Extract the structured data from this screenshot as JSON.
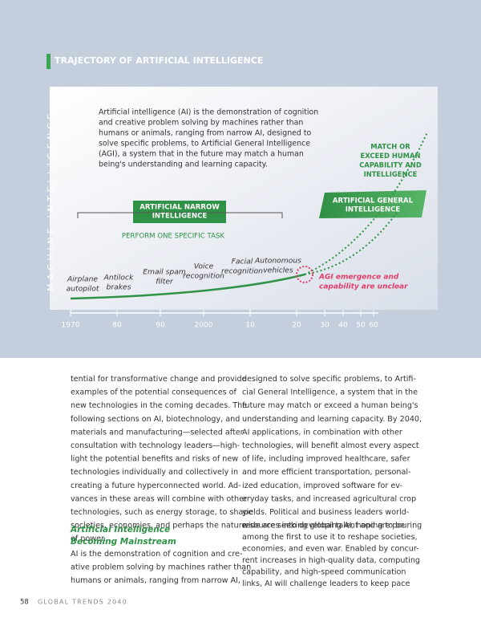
{
  "figure": {
    "title": "TRAJECTORY OF ARTIFICIAL INTELLIGENCE",
    "y_axis_label": "MACHINE INTELLIGENCE",
    "description": [
      "Artificial intelligence (AI) is the demonstration of cognition",
      "and creative problem solving by machines rather than",
      "humans or animals, ranging from narrow AI, designed to",
      "solve specific problems, to Artificial General Intelligence",
      "(AGI), a system that in the future may match a human",
      "being's understanding and learning capacity."
    ],
    "narrow_box": [
      "ARTIFICIAL NARROW",
      "INTELLIGENCE"
    ],
    "narrow_task": "PERFORM ONE SPECIFIC TASK",
    "general_box": [
      "ARTIFICIAL GENERAL",
      "INTELLIGENCE"
    ],
    "match_note": [
      "MATCH OR",
      "EXCEED HUMAN",
      "CAPABILITY AND",
      "INTELLIGENCE"
    ],
    "agi_note": [
      "AGI emergence and",
      "capability are unclear"
    ],
    "milestones": [
      [
        "Airplane",
        "autopilot"
      ],
      [
        "Antilock",
        "brakes"
      ],
      [
        "Email spam",
        "filter"
      ],
      [
        "Voice",
        "recognition"
      ],
      [
        "Facial",
        "recognition"
      ],
      [
        "Autonomous",
        "vehicles"
      ]
    ],
    "timeline": [
      "1970",
      "80",
      "90",
      "2000",
      "10",
      "20",
      "30",
      "40",
      "50",
      "60"
    ]
  },
  "body": {
    "left": [
      "tential for transformative change and provide",
      "examples of the potential consequences of",
      "new technologies in the coming decades. The",
      "following sections on AI, biotechnology, and",
      "materials and manufacturing—selected after",
      "consultation with technology leaders—high-",
      "light the potential benefits and risks of new",
      "technologies individually and collectively in",
      "creating a future hyperconnected world. Ad-",
      "vances in these areas will combine with other",
      "technologies, such as energy storage, to shape",
      "societies, economies, and perhaps the nature",
      "of power."
    ],
    "heading": [
      "Artificial Intelligence",
      "Becoming Mainstream"
    ],
    "left2": [
      "AI is the demonstration of cognition and cre-",
      "ative problem solving by machines rather than",
      "humans or animals, ranging from narrow AI,"
    ],
    "right": [
      "designed to solve specific problems, to Artifi-",
      "cial General Intelligence, a system that in the",
      "future may match or exceed a human being's",
      "understanding and learning capacity. By 2040,",
      "AI applications, in combination with other",
      "technologies, will benefit almost every aspect",
      "of life, including improved healthcare, safer",
      "and more efficient transportation, personal-",
      "ized education, improved software for ev-",
      "eryday tasks, and increased agricultural crop",
      "yields. Political and business leaders world-",
      "wide are seeking global talent and are pouring",
      "resources into developing AI, hoping to be",
      "among the first to use it to reshape societies,",
      "economies, and even war. Enabled by concur-",
      "rent increases in high-quality data, computing",
      "capability, and high-speed communication",
      "links, AI will challenge leaders to keep pace"
    ]
  },
  "footer": {
    "page": "58",
    "title": "GLOBAL TRENDS 2040"
  }
}
